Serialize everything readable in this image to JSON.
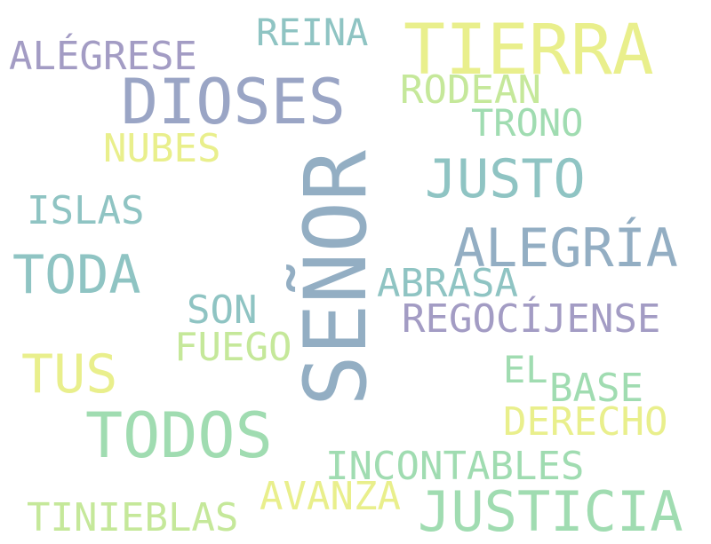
{
  "words": {
    "senor": "SEÑOR",
    "tierra": "TIERRA",
    "dioses": "DIOSES",
    "todos": "TODOS",
    "justicia": "JUSTICIA",
    "justo": "JUSTO",
    "alegria": "ALEGRÍA",
    "toda": "TODA",
    "tus": "TUS",
    "reina": "REINA",
    "alegrese": "ALÉGRESE",
    "rodean": "RODEAN",
    "trono": "TRONO",
    "nubes": "NUBES",
    "islas": "ISLAS",
    "abrasa": "ABRASA",
    "son": "SON",
    "regocijense": "REGOCÍJENSE",
    "fuego": "FUEGO",
    "el": "EL",
    "base": "BASE",
    "derecho": "DERECHO",
    "incontables": "INCONTABLES",
    "avanza": "AVANZA",
    "tinieblas": "TINIEBLAS"
  },
  "colors": {
    "yellow": "#e9ef8c",
    "lime": "#c5e89a",
    "mint": "#a0dcb1",
    "teal": "#8fc4c3",
    "steel": "#93aec3",
    "slate": "#9aa5c5",
    "lavender": "#a39cc4"
  }
}
